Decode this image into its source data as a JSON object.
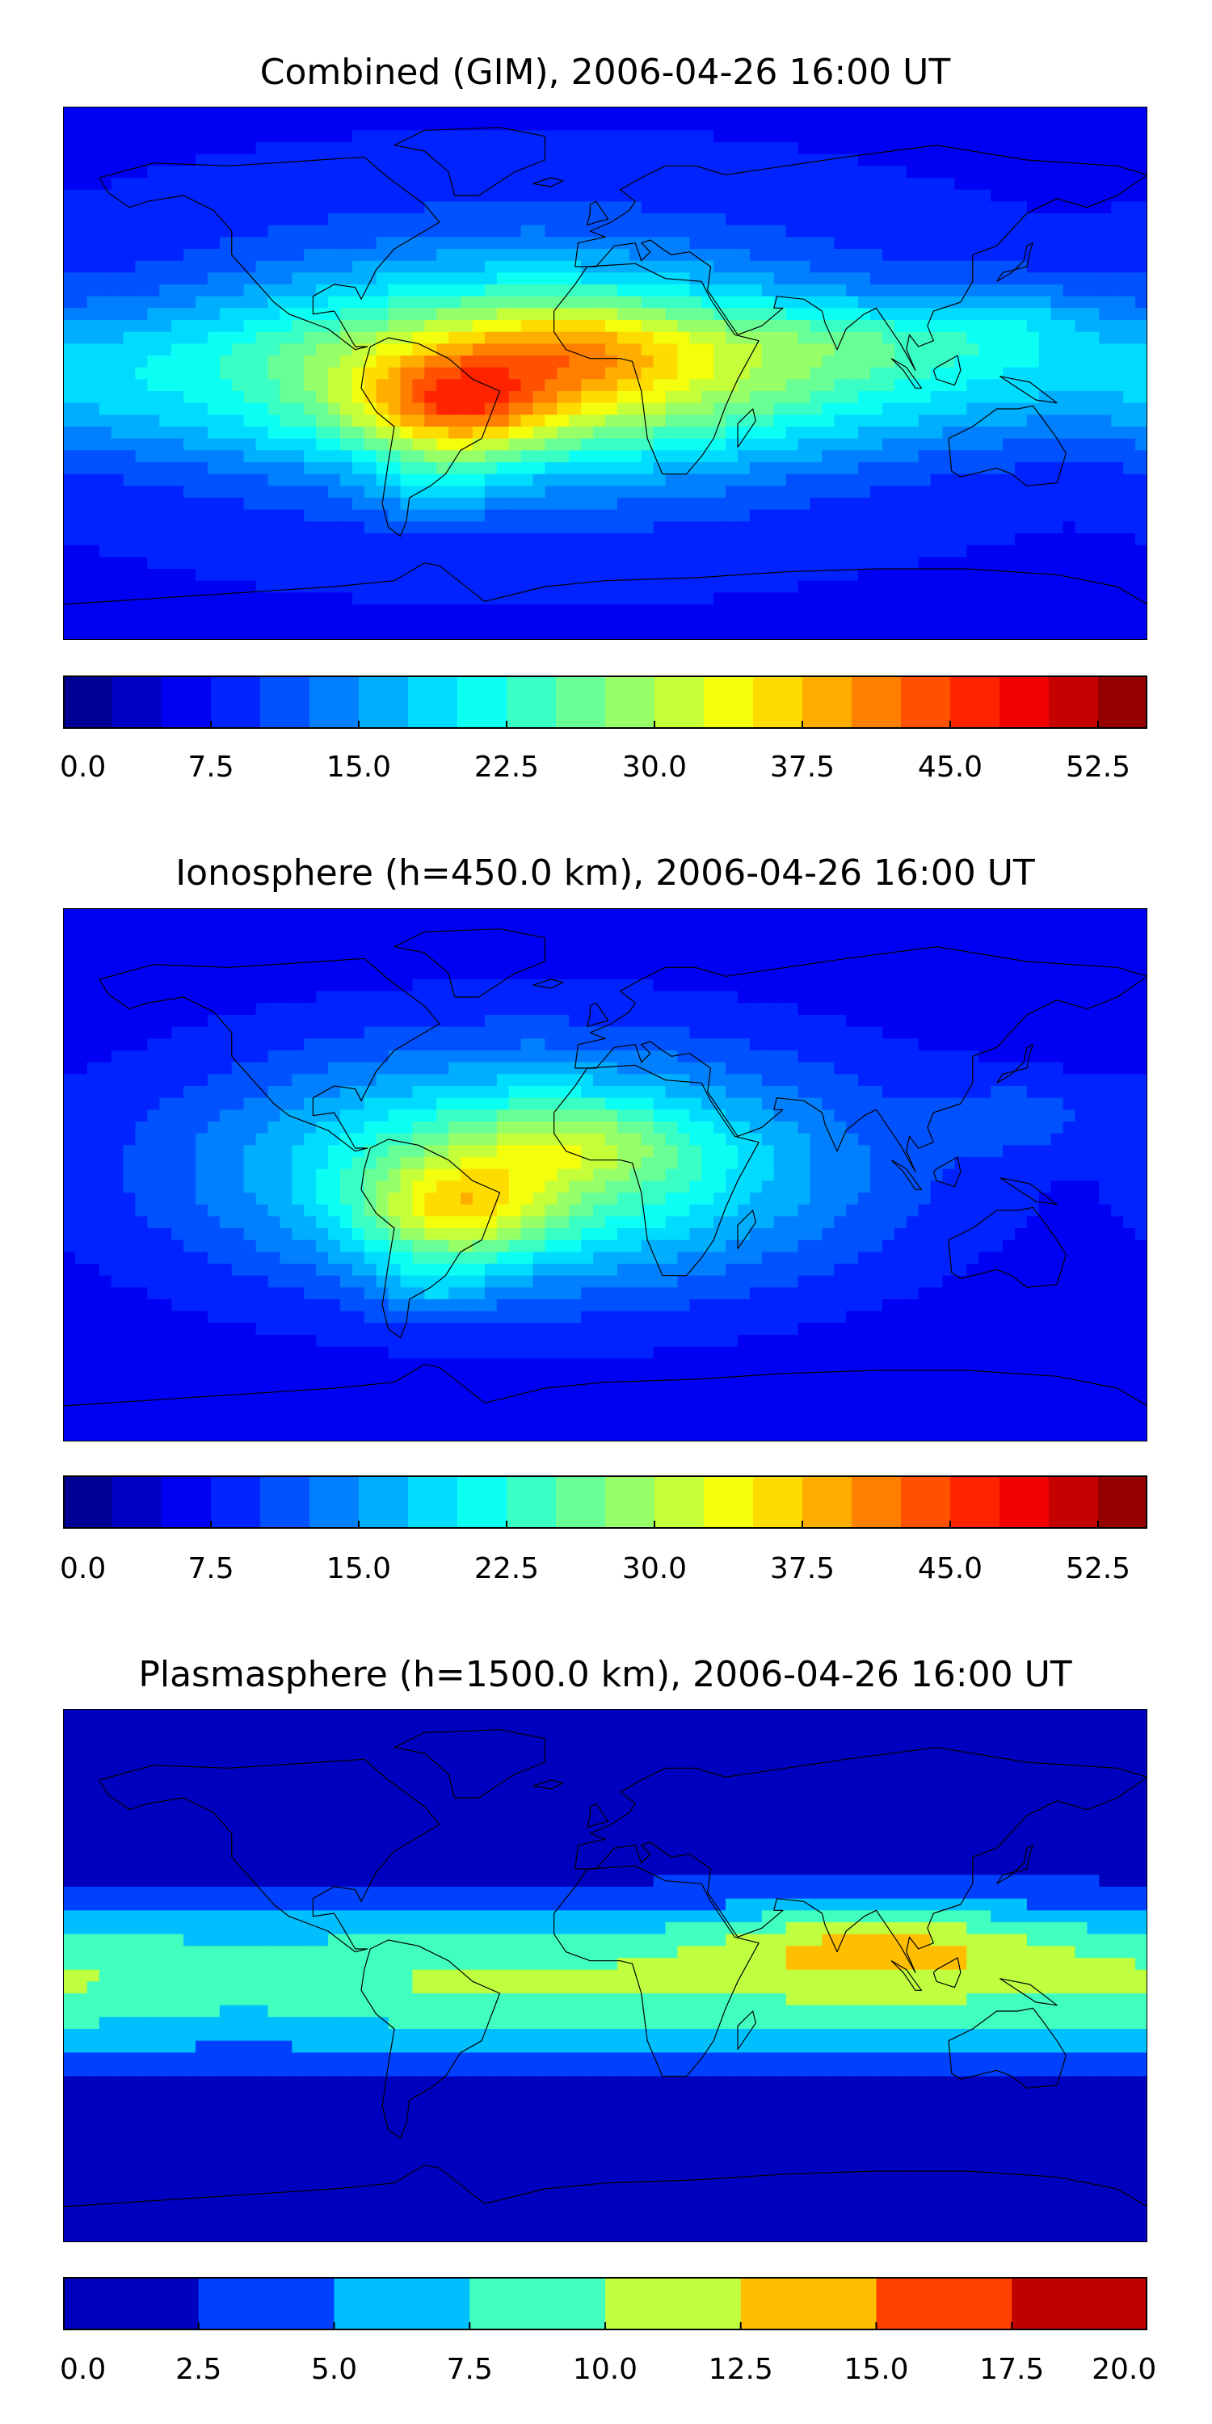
{
  "panels": [
    {
      "title": "Combined (GIM), 2006-04-26 16:00 UT",
      "field": "combined",
      "colorbar": {
        "min": 0,
        "max": 55,
        "levels": 22,
        "ticks": [
          "0.0",
          "7.5",
          "15.0",
          "22.5",
          "30.0",
          "37.5",
          "45.0",
          "52.5"
        ],
        "tick_values": [
          0,
          7.5,
          15,
          22.5,
          30,
          37.5,
          45,
          52.5
        ]
      }
    },
    {
      "title": "Ionosphere  (h=450.0 km), 2006-04-26 16:00 UT",
      "field": "ionosphere",
      "colorbar": {
        "min": 0,
        "max": 55,
        "levels": 22,
        "ticks": [
          "0.0",
          "7.5",
          "15.0",
          "22.5",
          "30.0",
          "37.5",
          "45.0",
          "52.5"
        ],
        "tick_values": [
          0,
          7.5,
          15,
          22.5,
          30,
          37.5,
          45,
          52.5
        ]
      }
    },
    {
      "title": "Plasmasphere (h=1500.0 km), 2006-04-26 16:00 UT",
      "field": "plasmasphere",
      "colorbar": {
        "min": 0,
        "max": 20,
        "levels": 8,
        "ticks": [
          "0.0",
          "2.5",
          "5.0",
          "7.5",
          "10.0",
          "12.5",
          "15.0",
          "17.5",
          "20.0"
        ],
        "tick_values": [
          0,
          2.5,
          5,
          7.5,
          10,
          12.5,
          15,
          17.5,
          20
        ]
      }
    }
  ],
  "chart_data": [
    {
      "type": "heatmap",
      "title": "Combined (GIM), 2006-04-26 16:00 UT",
      "colormap": "jet",
      "zlim": [
        0,
        55
      ],
      "zmax_approx": 50,
      "max_region": "tropical South America / equatorial Atlantic"
    },
    {
      "type": "heatmap",
      "title": "Ionosphere  (h=450.0 km), 2006-04-26 16:00 UT",
      "colormap": "jet",
      "zlim": [
        0,
        55
      ],
      "zmax_approx": 40,
      "max_region": "tropical South America / equatorial Atlantic"
    },
    {
      "type": "heatmap",
      "title": "Plasmasphere (h=1500.0 km), 2006-04-26 16:00 UT",
      "colormap": "jet",
      "zlim": [
        0,
        20
      ],
      "zmax_approx": 14,
      "max_region": "Arabian Sea / India / Southeast Asia"
    }
  ]
}
